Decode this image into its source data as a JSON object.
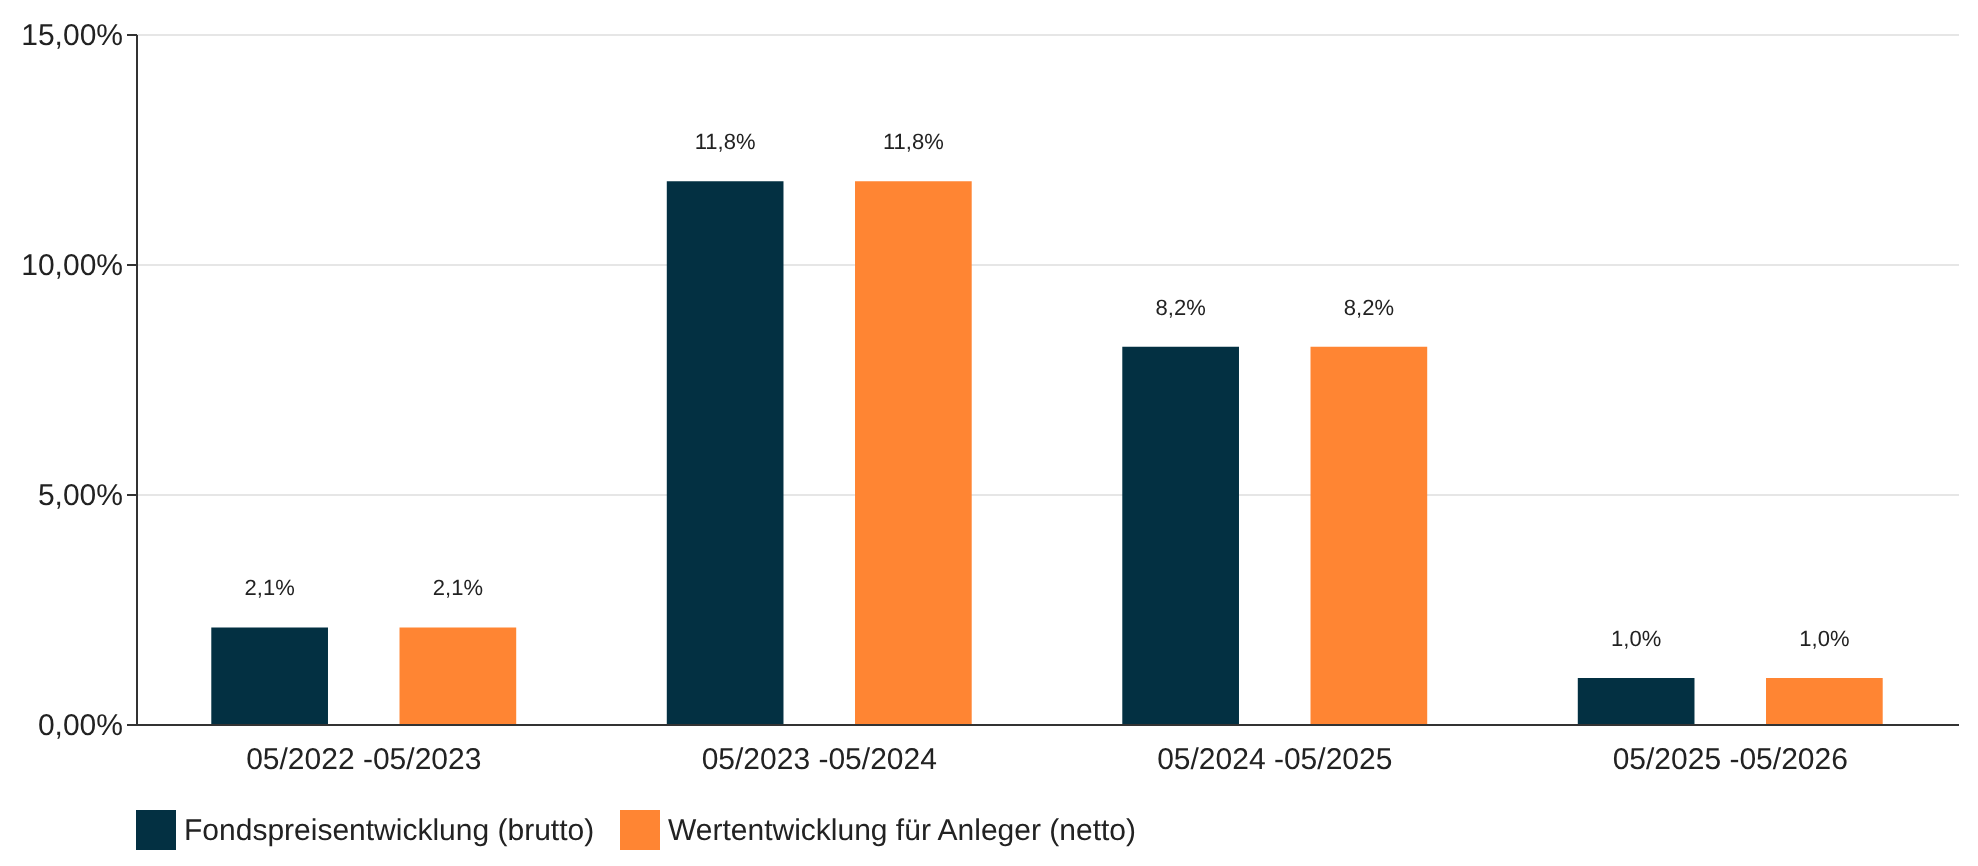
{
  "chart_data": {
    "type": "bar",
    "categories": [
      "05/2022 -05/2023",
      "05/2023 -05/2024",
      "05/2024 -05/2025",
      "05/2025 -05/2026"
    ],
    "series": [
      {
        "name": "Fondspreisentwicklung (brutto)",
        "color": "#033042",
        "values": [
          2.1,
          11.8,
          8.2,
          1.0
        ],
        "value_labels": [
          "2,1%",
          "11,8%",
          "8,2%",
          "1,0%"
        ]
      },
      {
        "name": "Wertentwicklung für Anleger (netto)",
        "color": "#ff8533",
        "values": [
          2.1,
          11.8,
          8.2,
          1.0
        ],
        "value_labels": [
          "2,1%",
          "11,8%",
          "8,2%",
          "1,0%"
        ]
      }
    ],
    "ylim": [
      0,
      15
    ],
    "yticks": [
      {
        "value": 0,
        "label": "0,00%"
      },
      {
        "value": 5,
        "label": "5,00%"
      },
      {
        "value": 10,
        "label": "10,00%"
      },
      {
        "value": 15,
        "label": "15,00%"
      }
    ],
    "grid": "y",
    "legend": "bottom"
  }
}
